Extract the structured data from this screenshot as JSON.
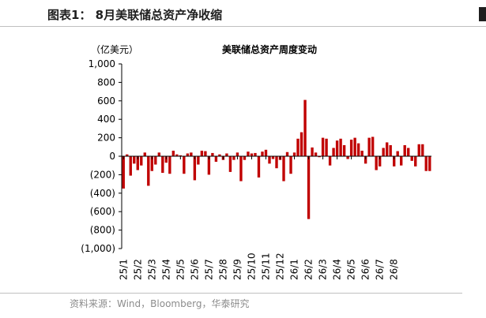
{
  "figure_label": "图表1： 8月美联储总资产净收缩",
  "source_note": "资料来源：Wind，Bloomberg，华泰研究",
  "chart_data": {
    "type": "bar",
    "title": "美联储总资产周度变动",
    "ylabel": "（亿美元）",
    "xlabel": "",
    "ylim": [
      -1000,
      1000
    ],
    "ytick_values": [
      -1000,
      -800,
      -600,
      -400,
      -200,
      0,
      200,
      400,
      600,
      800,
      1000
    ],
    "ytick_labels": [
      "(1,000)",
      "(800)",
      "(600)",
      "(400)",
      "(200)",
      "0",
      "200",
      "400",
      "600",
      "800",
      "1,000"
    ],
    "x_tick_labels": [
      "25/1",
      "25/2",
      "25/3",
      "25/4",
      "25/5",
      "25/6",
      "25/7",
      "25/8",
      "25/9",
      "25/10",
      "25/11",
      "25/12",
      "26/1",
      "26/2",
      "26/3",
      "26/4",
      "26/5",
      "26/6",
      "26/7",
      "26/8"
    ],
    "weeks_per_label": 4,
    "bar_color": "#c00000",
    "grid": false,
    "values": [
      -350,
      20,
      -210,
      -80,
      -150,
      -100,
      40,
      -320,
      -160,
      -90,
      40,
      -180,
      -70,
      -190,
      60,
      20,
      10,
      -190,
      30,
      40,
      -260,
      -90,
      60,
      55,
      -200,
      35,
      -60,
      20,
      -40,
      30,
      -170,
      -40,
      40,
      -270,
      -40,
      50,
      30,
      35,
      -230,
      50,
      70,
      -80,
      -30,
      -130,
      -40,
      -270,
      45,
      -190,
      40,
      190,
      260,
      610,
      -680,
      95,
      40,
      -10,
      200,
      190,
      -100,
      90,
      170,
      190,
      120,
      -30,
      180,
      200,
      140,
      60,
      -80,
      200,
      210,
      -150,
      -110,
      90,
      150,
      120,
      -110,
      55,
      -100,
      120,
      90,
      -50,
      -110,
      130,
      130,
      -160,
      -160
    ]
  }
}
